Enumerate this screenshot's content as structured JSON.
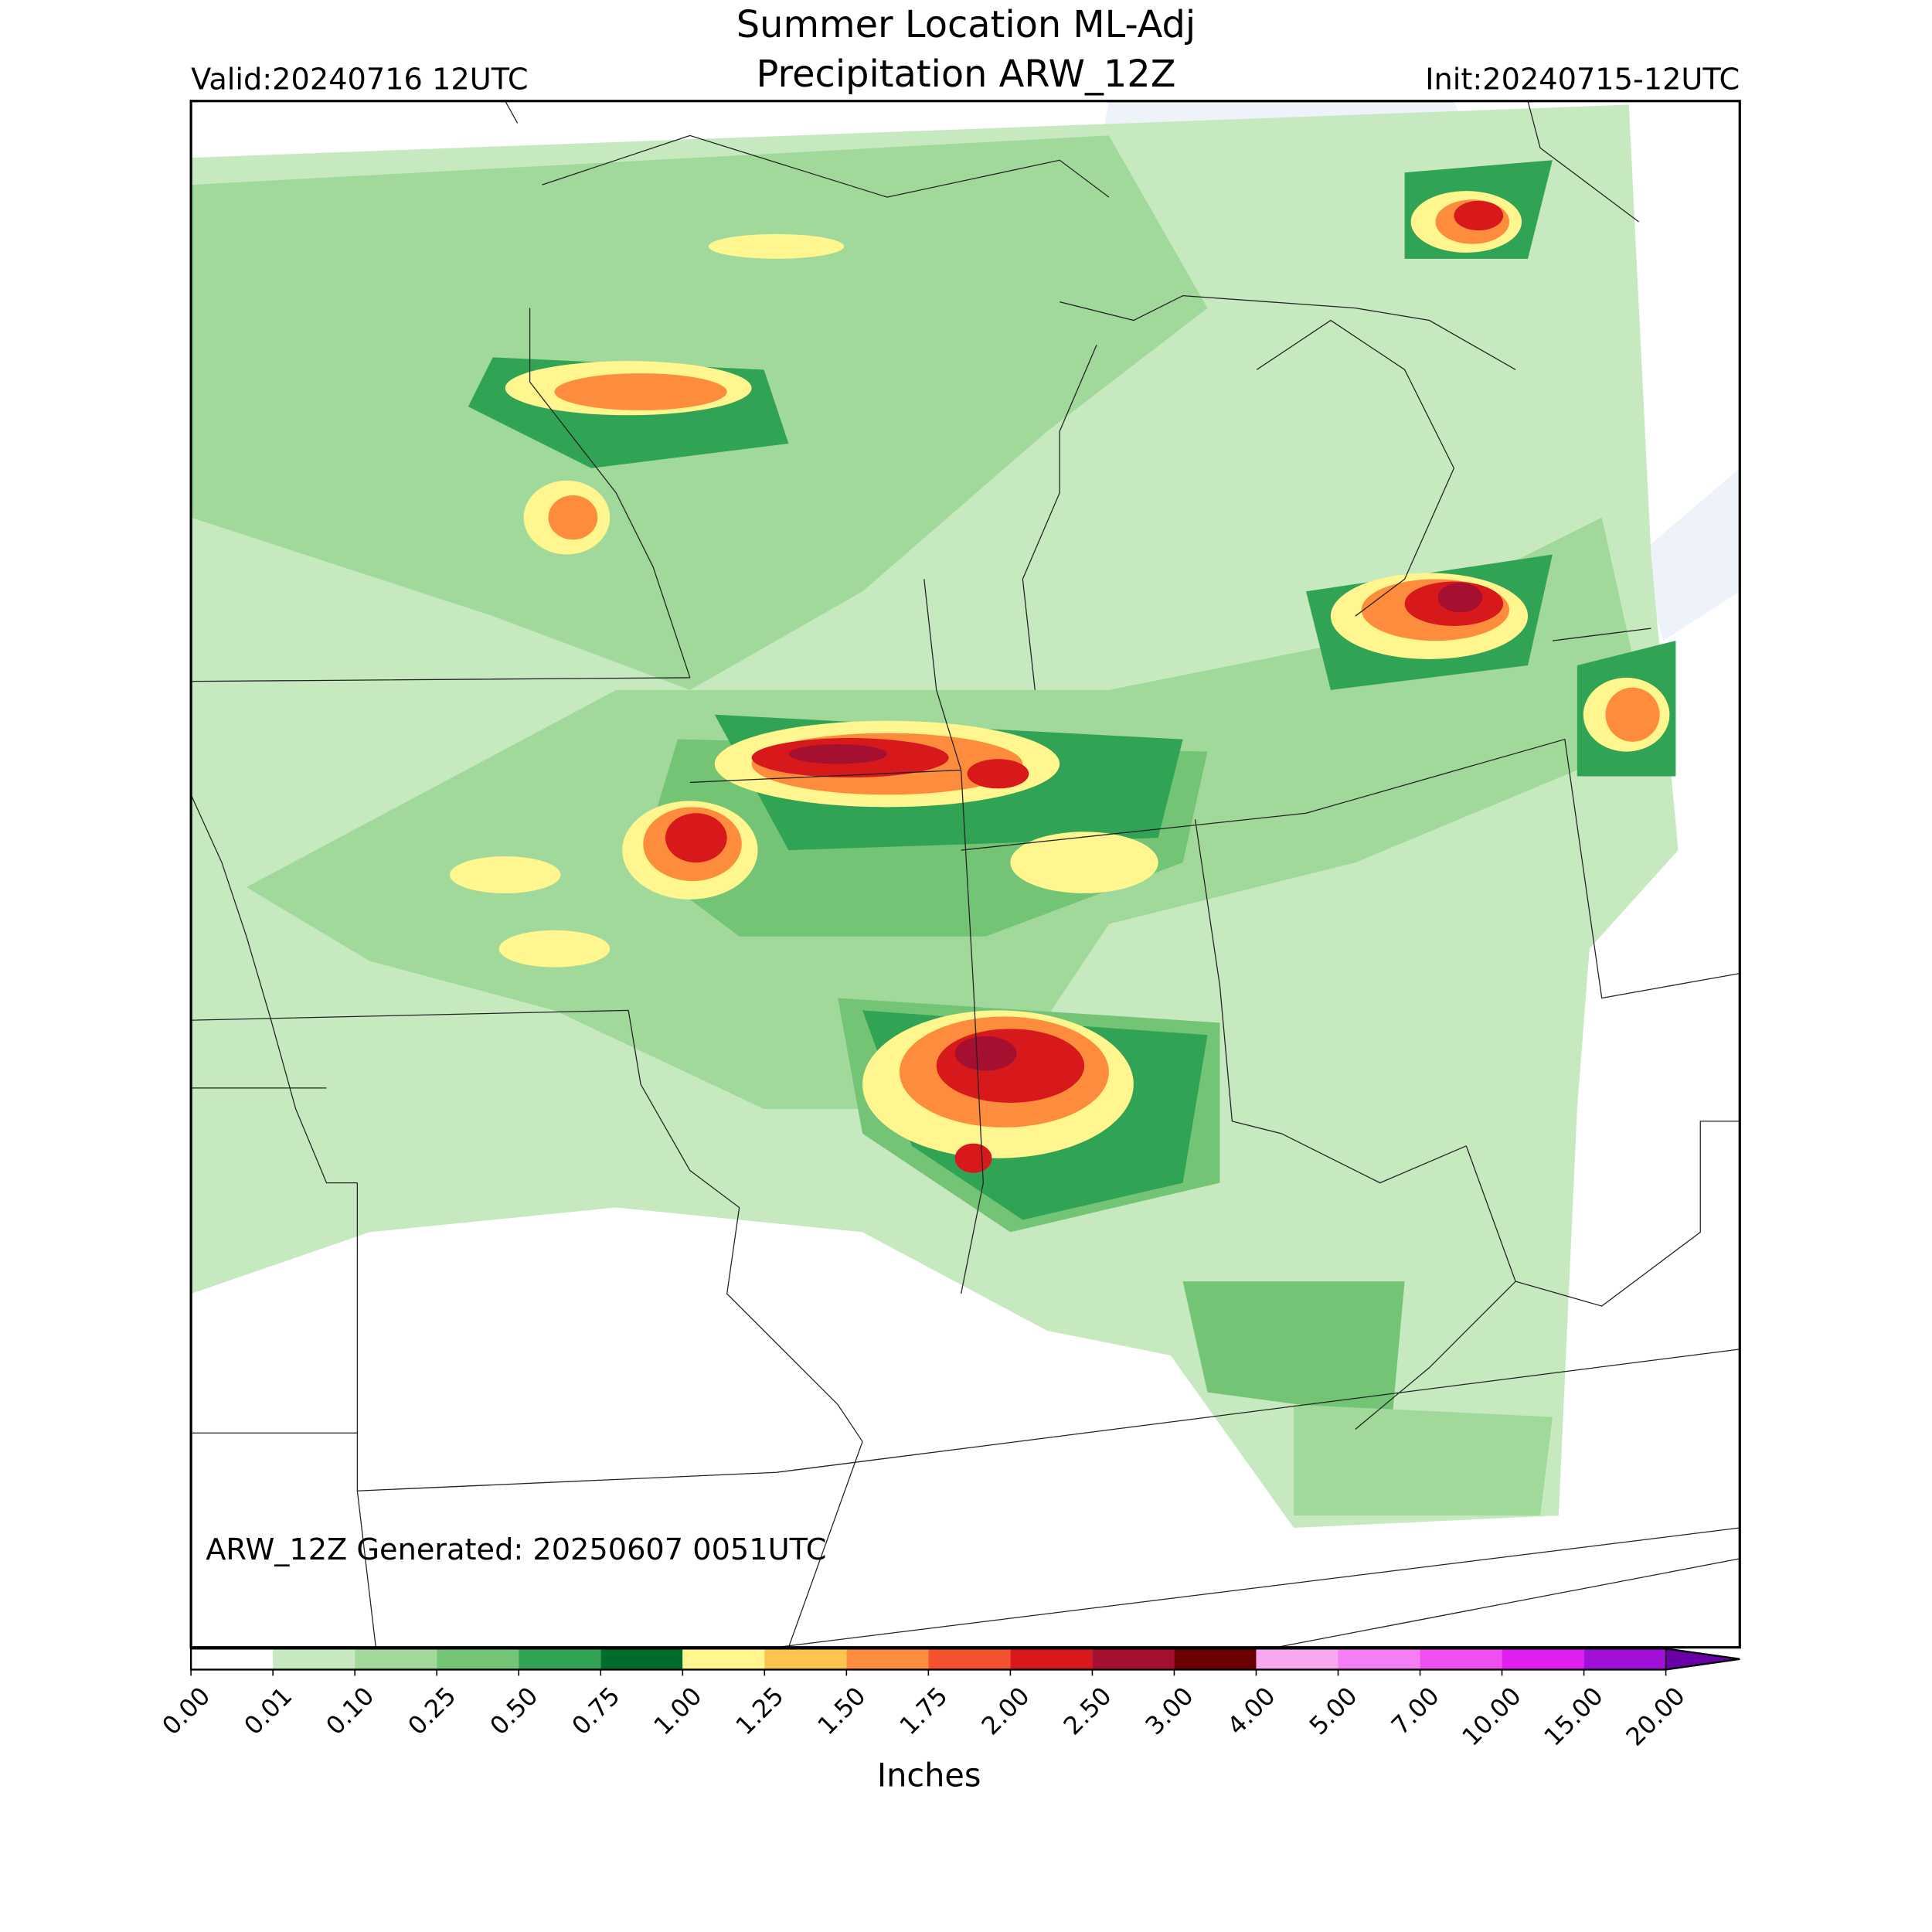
{
  "header": {
    "title_line1": "Summer Location ML-Adj",
    "title_line2": "Precipitation ARW_12Z",
    "valid": "Valid:20240716 12UTC",
    "init": "Init:20240715-12UTC"
  },
  "map": {
    "note": "ARW_12Z Generated: 20250607 0051UTC"
  },
  "colorbar": {
    "label": "Inches",
    "ticks": [
      {
        "value": 0,
        "label": "0.00"
      },
      {
        "value": 0.01,
        "label": "0.01"
      },
      {
        "value": 0.1,
        "label": "0.10"
      },
      {
        "value": 0.25,
        "label": "0.25"
      },
      {
        "value": 0.5,
        "label": "0.50"
      },
      {
        "value": 0.75,
        "label": "0.75"
      },
      {
        "value": 1,
        "label": "1.00"
      },
      {
        "value": 1.25,
        "label": "1.25"
      },
      {
        "value": 1.5,
        "label": "1.50"
      },
      {
        "value": 1.75,
        "label": "1.75"
      },
      {
        "value": 2,
        "label": "2.00"
      },
      {
        "value": 2.5,
        "label": "2.50"
      },
      {
        "value": 3,
        "label": "3.00"
      },
      {
        "value": 4,
        "label": "4.00"
      },
      {
        "value": 5,
        "label": "5.00"
      },
      {
        "value": 7,
        "label": "7.00"
      },
      {
        "value": 10,
        "label": "10.00"
      },
      {
        "value": 15,
        "label": "15.00"
      },
      {
        "value": 20,
        "label": "20.00"
      }
    ],
    "colors": [
      "#ffffff",
      "#c7e9c0",
      "#a1d99b",
      "#74c476",
      "#31a354",
      "#006d2c",
      "#fff68f",
      "#fdc44d",
      "#fd8d3c",
      "#f4512e",
      "#d7191c",
      "#a50f30",
      "#6b0000",
      "#f7a8f0",
      "#f57ef5",
      "#f04ff0",
      "#e01ef0",
      "#a010d8"
    ],
    "over_color": "#6a00a8"
  }
}
